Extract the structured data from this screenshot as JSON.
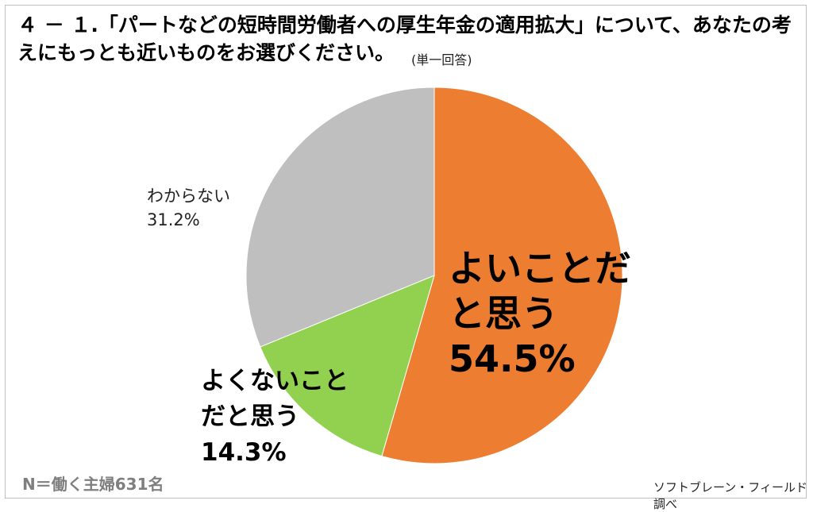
{
  "title": "４ － １.「パートなどの短時間労働者への厚生年金の適用拡大」について、あなたの考えにもっとも近いものをお選びください。",
  "answer_note": "(単一回答)",
  "sample_note": "N＝働く主婦631名",
  "source": "ソフトブレーン・フィールド調べ",
  "chart_data": {
    "type": "pie",
    "start_angle_deg": 0,
    "direction": "clockwise",
    "slices": [
      {
        "label_line1": "よいことだ",
        "label_line2": "と思う",
        "value": 54.5,
        "value_label": "54.5%",
        "color": "#ED7D31"
      },
      {
        "label_line1": "よくないこと",
        "label_line2": "だと思う",
        "value": 14.3,
        "value_label": "14.3%",
        "color": "#92D050"
      },
      {
        "label_line1": "わからない",
        "label_line2": "",
        "value": 31.2,
        "value_label": "31.2%",
        "color": "#BFBFBF"
      }
    ]
  }
}
